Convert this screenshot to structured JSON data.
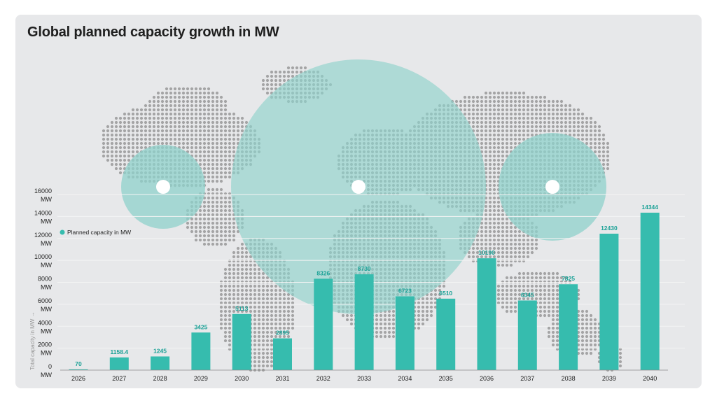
{
  "title": "Global planned capacity growth in MW",
  "colors": {
    "bar": "#36bcae",
    "value_label": "#1aa196",
    "circle": "#8fd2cb",
    "map_dot": "#8e8e8e",
    "background": "#e7e8ea",
    "grid": "#f4f4f4"
  },
  "chart_data": {
    "type": "bar",
    "title": "Global planned capacity growth in MW",
    "xlabel": "",
    "ylabel": "Total capacity in MW →",
    "categories": [
      "2026",
      "2027",
      "2028",
      "2029",
      "2030",
      "2031",
      "2032",
      "2033",
      "2034",
      "2035",
      "2036",
      "2037",
      "2038",
      "2039",
      "2040"
    ],
    "values": [
      70,
      1158.4,
      1245,
      3425,
      5113,
      2895,
      8326,
      8730,
      6723,
      6510,
      10190,
      6345,
      7825,
      12430,
      14344
    ],
    "value_labels": [
      "70",
      "1158.4",
      "1245",
      "3425",
      "5113",
      "2895",
      "8326",
      "8730",
      "6723",
      "6510",
      "10190",
      "6345",
      "7825",
      "12430",
      "14344"
    ],
    "ylim": [
      0,
      16000
    ],
    "yticks": [
      0,
      2000,
      4000,
      6000,
      8000,
      10000,
      12000,
      14000,
      16000
    ],
    "ytick_unit": "MW",
    "legend": [
      {
        "label": "Planned capacity in MW",
        "placement": "left"
      }
    ],
    "grid": true
  }
}
